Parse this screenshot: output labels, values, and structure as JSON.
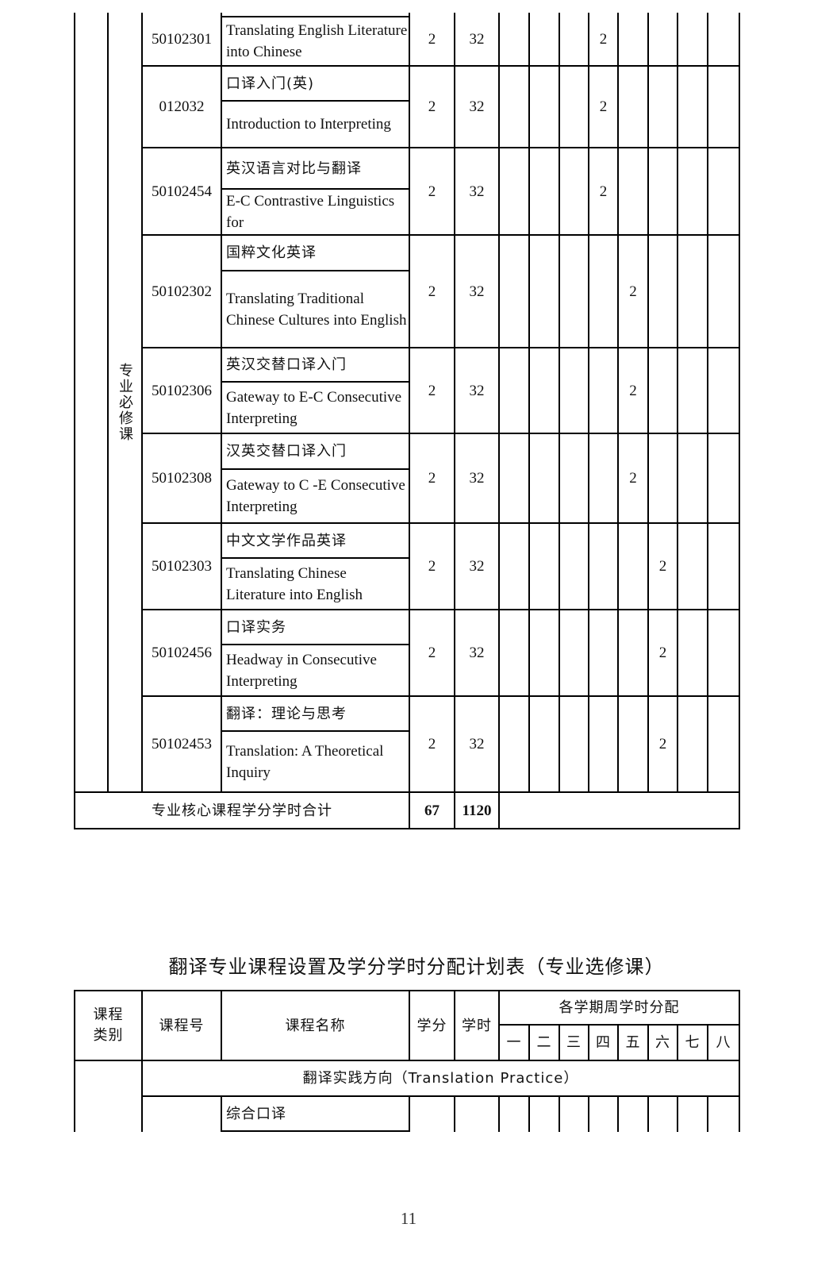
{
  "table1": {
    "category": "专业必修课",
    "rows": [
      {
        "code": "50102301",
        "cn": "",
        "en": "Translating English Literature into Chinese",
        "credits": "2",
        "hours": "32",
        "sem": [
          "",
          "",
          "",
          "2",
          "",
          "",
          "",
          ""
        ]
      },
      {
        "code": "012032",
        "cn": "口译入门(英)",
        "en": "Introduction to Interpreting",
        "credits": "2",
        "hours": "32",
        "sem": [
          "",
          "",
          "",
          "2",
          "",
          "",
          "",
          ""
        ]
      },
      {
        "code": "50102454",
        "cn": "英汉语言对比与翻译",
        "en": "E-C Contrastive Linguistics for",
        "credits": "2",
        "hours": "32",
        "sem": [
          "",
          "",
          "",
          "2",
          "",
          "",
          "",
          ""
        ]
      },
      {
        "code": "50102302",
        "cn": "国粹文化英译",
        "en": "Translating Traditional Chinese Cultures into English",
        "credits": "2",
        "hours": "32",
        "sem": [
          "",
          "",
          "",
          "",
          "2",
          "",
          "",
          ""
        ]
      },
      {
        "code": "50102306",
        "cn": "英汉交替口译入门",
        "en": "Gateway to E-C Consecutive Interpreting",
        "credits": "2",
        "hours": "32",
        "sem": [
          "",
          "",
          "",
          "",
          "2",
          "",
          "",
          ""
        ]
      },
      {
        "code": "50102308",
        "cn": "汉英交替口译入门",
        "en": "Gateway to C -E Consecutive Interpreting",
        "credits": "2",
        "hours": "32",
        "sem": [
          "",
          "",
          "",
          "",
          "2",
          "",
          "",
          ""
        ]
      },
      {
        "code": "50102303",
        "cn": "中文文学作品英译",
        "en": "Translating Chinese Literature into English",
        "credits": "2",
        "hours": "32",
        "sem": [
          "",
          "",
          "",
          "",
          "",
          "2",
          "",
          ""
        ]
      },
      {
        "code": "50102456",
        "cn": "口译实务",
        "en": "Headway in Consecutive Interpreting",
        "credits": "2",
        "hours": "32",
        "sem": [
          "",
          "",
          "",
          "",
          "",
          "2",
          "",
          ""
        ]
      },
      {
        "code": "50102453",
        "cn": "翻译：理论与思考",
        "en": "Translation: A Theoretical Inquiry",
        "credits": "2",
        "hours": "32",
        "sem": [
          "",
          "",
          "",
          "",
          "",
          "2",
          "",
          ""
        ]
      }
    ],
    "total": {
      "label": "专业核心课程学分学时合计",
      "credits": "67",
      "hours": "1120"
    }
  },
  "table2": {
    "title": "翻译专业课程设置及学分学时分配计划表（专业选修课）",
    "headers": {
      "category": "课程类别",
      "code": "课程号",
      "name": "课程名称",
      "credits": "学分",
      "hours": "学时",
      "semesters": "各学期周学时分配"
    },
    "semester_labels": [
      "一",
      "二",
      "三",
      "四",
      "五",
      "六",
      "七",
      "八"
    ],
    "section": "翻译实践方向（Translation Practice）",
    "rows": [
      {
        "cn": "综合口译"
      }
    ]
  },
  "page_number": "11"
}
